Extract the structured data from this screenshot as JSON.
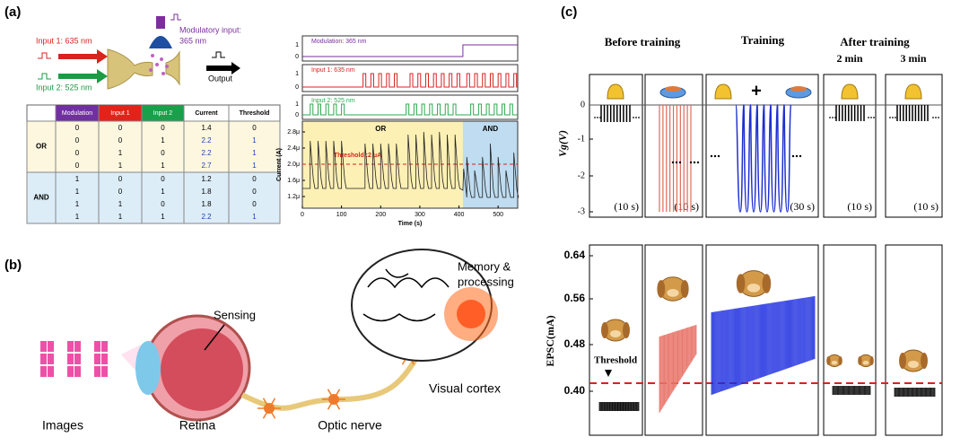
{
  "panel_labels": [
    "(a)",
    "(b)",
    "(c)"
  ],
  "panel_a": {
    "schematic": {
      "input1": "Input 1: 635 nm",
      "input2": "Input 2: 525 nm",
      "modulatory": [
        "Modulatory input:",
        "365 nm"
      ],
      "output": "Output"
    },
    "table": {
      "header": [
        "Modulation",
        "Input 1",
        "Input 2",
        "Current",
        "Threshold"
      ],
      "groups": [
        {
          "name": "OR",
          "rows": [
            [
              0,
              0,
              0,
              1.4,
              0
            ],
            [
              0,
              0,
              1,
              2.2,
              1
            ],
            [
              0,
              1,
              0,
              2.2,
              1
            ],
            [
              0,
              1,
              1,
              2.7,
              1
            ]
          ]
        },
        {
          "name": "AND",
          "rows": [
            [
              1,
              0,
              0,
              1.2,
              0
            ],
            [
              1,
              0,
              1,
              1.8,
              0
            ],
            [
              1,
              1,
              0,
              1.8,
              0
            ],
            [
              1,
              1,
              1,
              2.2,
              1
            ]
          ]
        }
      ]
    },
    "plot": {
      "traces": [
        "Modulation: 365 nm",
        "Input 1: 635 nm",
        "Input 2: 525 nm"
      ],
      "trace_ticks": [
        1,
        0
      ],
      "yticks": [
        "2.8μ",
        "2.4μ",
        "2.0μ",
        "1.6μ",
        "1.2μ"
      ],
      "ylabel": "Current (A)",
      "xticks": [
        0,
        100,
        200,
        300,
        400,
        500
      ],
      "xlabel": "Time (s)",
      "regions": [
        "OR",
        "AND"
      ],
      "threshold": "Threshold :2 μA"
    }
  },
  "panel_b": {
    "labels": {
      "memory": [
        "Memory &",
        "processing"
      ],
      "sensing": "Sensing",
      "images": "Images",
      "retina": "Retina",
      "nerve": "Optic nerve",
      "cortex": "Visual cortex"
    }
  },
  "panel_c": {
    "headers": [
      "Before training",
      "Training",
      "After training"
    ],
    "after_times": [
      "2 min",
      "3 min"
    ],
    "plus": "+",
    "durations": [
      "(10 s)",
      "(10 s)",
      "(30 s)",
      "(10 s)",
      "(10 s)"
    ],
    "top_yticks": [
      0,
      -1,
      -2,
      -3
    ],
    "top_ylabel": "Vg(V)",
    "bottom_yticks": [
      "0.64",
      "0.56",
      "0.48",
      "0.40"
    ],
    "bottom_ylabel": "EPSC(mA)",
    "threshold": "Threshold"
  }
}
